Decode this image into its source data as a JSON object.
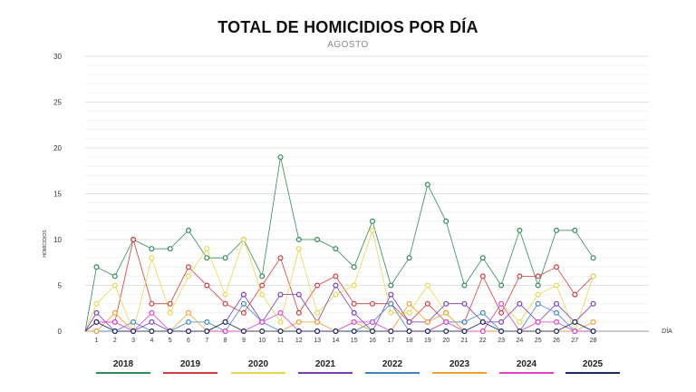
{
  "chart_data": {
    "type": "line",
    "title": "TOTAL DE HOMICIDIOS POR DÍA",
    "subtitle": "AGOSTO",
    "xlabel": "DÍA",
    "ylabel": "HOMICIDIOS",
    "ylim": [
      0,
      30
    ],
    "yticks": [
      0,
      5,
      10,
      15,
      20,
      25,
      30
    ],
    "x": [
      1,
      2,
      3,
      4,
      5,
      6,
      7,
      8,
      9,
      10,
      11,
      12,
      13,
      14,
      15,
      16,
      17,
      18,
      19,
      20,
      21,
      22,
      23,
      24,
      25,
      26,
      27,
      28
    ],
    "series": [
      {
        "name": "2018",
        "color": "#2e8b57",
        "values": [
          7,
          6,
          10,
          9,
          9,
          11,
          8,
          8,
          10,
          6,
          19,
          10,
          10,
          9,
          7,
          12,
          5,
          8,
          16,
          12,
          5,
          8,
          5,
          11,
          5,
          11,
          11,
          8
        ]
      },
      {
        "name": "2019",
        "color": "#d23c3c",
        "values": [
          1,
          1,
          10,
          3,
          3,
          7,
          5,
          3,
          2,
          5,
          8,
          2,
          5,
          6,
          3,
          3,
          3,
          1,
          3,
          1,
          1,
          6,
          2,
          6,
          6,
          7,
          4,
          6
        ]
      },
      {
        "name": "2020",
        "color": "#e6d84a",
        "values": [
          3,
          5,
          0,
          8,
          2,
          6,
          9,
          4,
          10,
          4,
          1,
          9,
          2,
          4,
          5,
          11,
          2,
          2,
          5,
          2,
          0,
          0,
          3,
          1,
          4,
          5,
          0,
          6
        ]
      },
      {
        "name": "2021",
        "color": "#7a3db8",
        "values": [
          2,
          0,
          0,
          1,
          0,
          0,
          0,
          1,
          4,
          1,
          4,
          4,
          1,
          5,
          2,
          0,
          4,
          1,
          1,
          3,
          3,
          1,
          1,
          3,
          1,
          3,
          1,
          3
        ]
      },
      {
        "name": "2022",
        "color": "#3d85c6",
        "values": [
          0,
          0,
          1,
          0,
          0,
          1,
          1,
          0,
          3,
          1,
          0,
          0,
          0,
          0,
          0,
          1,
          3,
          0,
          0,
          1,
          1,
          2,
          0,
          0,
          3,
          2,
          0,
          0
        ]
      },
      {
        "name": "2023",
        "color": "#f0a030",
        "values": [
          0,
          2,
          0,
          0,
          0,
          2,
          0,
          0,
          0,
          0,
          0,
          1,
          1,
          0,
          1,
          0,
          0,
          3,
          1,
          2,
          0,
          0,
          0,
          0,
          0,
          0,
          0,
          1
        ]
      },
      {
        "name": "2024",
        "color": "#e040d0",
        "values": [
          1,
          1,
          0,
          2,
          0,
          0,
          0,
          0,
          0,
          1,
          2,
          0,
          0,
          0,
          1,
          1,
          0,
          0,
          0,
          1,
          0,
          0,
          3,
          0,
          1,
          1,
          0,
          0
        ]
      },
      {
        "name": "2025",
        "color": "#1a2a5e",
        "values": [
          1,
          0,
          0,
          0,
          0,
          0,
          0,
          1,
          0,
          0,
          0,
          0,
          0,
          0,
          0,
          0,
          0,
          0,
          0,
          0,
          0,
          1,
          0,
          0,
          0,
          0,
          1,
          0
        ]
      }
    ]
  }
}
